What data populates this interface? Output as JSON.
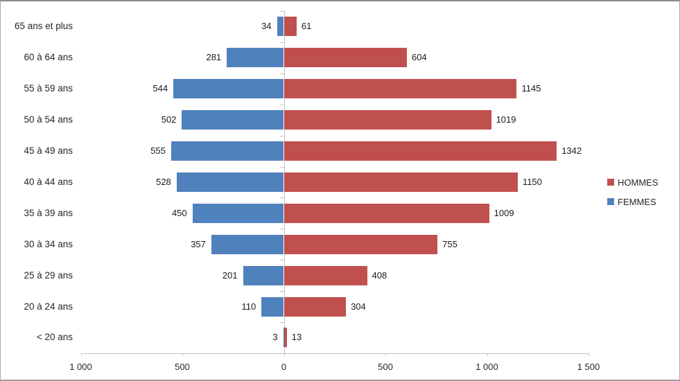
{
  "chart_data": {
    "type": "bar",
    "variant": "population-pyramid",
    "orientation": "horizontal",
    "title": "",
    "categories": [
      "65 ans et plus",
      "60 à 64 ans",
      "55 à 59 ans",
      "50 à 54 ans",
      "45 à 49 ans",
      "40 à 44 ans",
      "35 à 39 ans",
      "30 à 34 ans",
      "25 à 29 ans",
      "20 à 24 ans",
      "< 20 ans"
    ],
    "series": [
      {
        "name": "HOMMES",
        "side": "right",
        "color": "#C0504D",
        "values": [
          61,
          604,
          1145,
          1019,
          1342,
          1150,
          1009,
          755,
          408,
          304,
          13
        ]
      },
      {
        "name": "FEMMES",
        "side": "left",
        "color": "#4F81BD",
        "values": [
          34,
          281,
          544,
          502,
          555,
          528,
          450,
          357,
          201,
          110,
          3
        ]
      }
    ],
    "x_axis": {
      "tick_labels": [
        "1 000",
        "500",
        "0",
        "500",
        "1 000",
        "1 500"
      ],
      "tick_values": [
        -1000,
        -500,
        0,
        500,
        1000,
        1500
      ]
    },
    "data_labels": true,
    "grid": false,
    "legend": {
      "position": "right",
      "entries": [
        "HOMMES",
        "FEMMES"
      ]
    }
  },
  "legend": {
    "hommes_label": "HOMMES",
    "femmes_label": "FEMMES"
  },
  "colors": {
    "hommes": "#C0504D",
    "femmes": "#4F81BD",
    "axis": "#C3C3C3",
    "text": "#262626"
  }
}
